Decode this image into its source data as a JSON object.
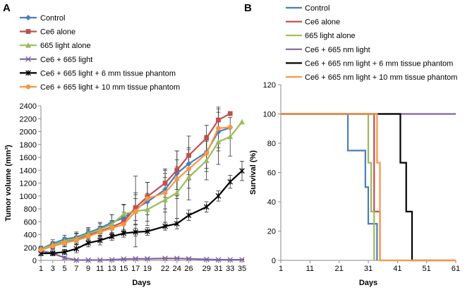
{
  "figure": {
    "panel_a_letter": "A",
    "panel_b_letter": "B"
  },
  "chart_data": [
    {
      "type": "line",
      "panel": "A",
      "xlabel": "Days",
      "ylabel": "Tumor volume (mm³)",
      "xlim": [
        1,
        35
      ],
      "ylim": [
        0,
        2400
      ],
      "xticks": [
        1,
        3,
        5,
        7,
        9,
        11,
        13,
        15,
        17,
        19,
        22,
        24,
        26,
        29,
        31,
        33,
        35
      ],
      "yticks": [
        0,
        200,
        400,
        600,
        800,
        1000,
        1200,
        1400,
        1600,
        1800,
        2000,
        2200,
        2400
      ],
      "legend_position": "top-left",
      "series": [
        {
          "name": "Control",
          "color": "#4a7ebb",
          "marker": "diamond",
          "x": [
            1,
            3,
            5,
            7,
            9,
            11,
            13,
            15,
            17,
            19,
            22,
            24,
            26,
            29,
            31,
            33
          ],
          "y": [
            180,
            260,
            330,
            360,
            430,
            500,
            590,
            660,
            800,
            910,
            1100,
            1350,
            1500,
            1680,
            2000,
            2060
          ],
          "err": [
            40,
            60,
            60,
            80,
            80,
            90,
            120,
            200,
            250,
            300,
            300,
            350,
            250,
            250,
            300,
            0
          ]
        },
        {
          "name": "Ce6 alone",
          "color": "#c0504d",
          "marker": "square",
          "x": [
            1,
            3,
            5,
            7,
            9,
            11,
            13,
            15,
            17,
            19,
            22,
            24,
            26,
            29,
            31,
            33
          ],
          "y": [
            160,
            230,
            280,
            330,
            390,
            450,
            520,
            600,
            820,
            990,
            1200,
            1400,
            1630,
            1900,
            2180,
            2280
          ],
          "err": [
            40,
            50,
            60,
            80,
            80,
            80,
            100,
            150,
            200,
            220,
            220,
            300,
            300,
            200,
            200,
            0
          ]
        },
        {
          "name": "665 light alone",
          "color": "#9bbb59",
          "marker": "triangle",
          "x": [
            1,
            3,
            5,
            7,
            9,
            11,
            13,
            15,
            17,
            19,
            22,
            24,
            26,
            29,
            31,
            33,
            35
          ],
          "y": [
            175,
            240,
            300,
            340,
            410,
            480,
            560,
            720,
            760,
            790,
            940,
            1050,
            1290,
            1550,
            1840,
            1920,
            2150
          ],
          "err": [
            40,
            50,
            60,
            80,
            80,
            90,
            150,
            150,
            550,
            250,
            350,
            400,
            350,
            300,
            350,
            300,
            0
          ]
        },
        {
          "name": "Ce6 + 665 light",
          "color": "#8064a2",
          "marker": "x",
          "x": [
            1,
            3,
            5,
            7,
            9,
            11,
            13,
            15,
            17,
            19,
            22,
            24,
            26,
            29,
            31,
            33,
            35
          ],
          "y": [
            150,
            110,
            40,
            5,
            5,
            5,
            10,
            20,
            25,
            25,
            30,
            30,
            25,
            15,
            10,
            10,
            10
          ],
          "err": [
            20,
            20,
            20,
            5,
            5,
            5,
            5,
            10,
            10,
            10,
            10,
            10,
            10,
            5,
            5,
            5,
            5
          ]
        },
        {
          "name": "Ce6 + 665 light + 6 mm tissue phantom",
          "color": "#000000",
          "marker": "star",
          "x": [
            1,
            3,
            5,
            7,
            9,
            11,
            13,
            15,
            17,
            19,
            22,
            24,
            26,
            29,
            31,
            33,
            35
          ],
          "y": [
            110,
            110,
            130,
            180,
            270,
            310,
            370,
            420,
            440,
            450,
            530,
            570,
            700,
            830,
            1000,
            1220,
            1390
          ],
          "err": [
            40,
            40,
            40,
            60,
            60,
            70,
            60,
            60,
            60,
            60,
            60,
            80,
            80,
            80,
            80,
            100,
            150
          ]
        },
        {
          "name": "Ce6 + 665 light + 10 mm tissue phantom",
          "color": "#f79646",
          "marker": "circle",
          "x": [
            1,
            3,
            5,
            7,
            9,
            11,
            13,
            15,
            17,
            19,
            22,
            24,
            26,
            29,
            31,
            33
          ],
          "y": [
            160,
            220,
            270,
            310,
            370,
            440,
            500,
            560,
            760,
            960,
            1050,
            1260,
            1420,
            1660,
            2050,
            2070
          ],
          "err": [
            40,
            50,
            60,
            70,
            80,
            90,
            100,
            120,
            200,
            250,
            300,
            300,
            300,
            280,
            300,
            0
          ]
        }
      ]
    },
    {
      "type": "line",
      "panel": "B",
      "step": true,
      "xlabel": "Days",
      "ylabel": "Survival (%)",
      "xlim": [
        1,
        61
      ],
      "ylim": [
        0,
        120
      ],
      "xticks": [
        1,
        11,
        21,
        31,
        41,
        51,
        61
      ],
      "yticks": [
        0,
        20,
        40,
        60,
        80,
        100,
        120
      ],
      "legend_position": "top",
      "series": [
        {
          "name": "Control",
          "color": "#4a7ebb",
          "x": [
            1,
            24,
            24,
            30,
            30,
            31,
            31,
            32,
            32,
            34,
            34
          ],
          "y": [
            100,
            100,
            75,
            75,
            50,
            50,
            25,
            25,
            25,
            25,
            0
          ]
        },
        {
          "name": "Ce6 alone",
          "color": "#c0504d",
          "x": [
            1,
            33,
            33,
            35,
            35
          ],
          "y": [
            100,
            100,
            33.3,
            33.3,
            0
          ]
        },
        {
          "name": "665 light alone",
          "color": "#9bbb59",
          "x": [
            1,
            31,
            31,
            32,
            32,
            33,
            33
          ],
          "y": [
            100,
            100,
            66.7,
            66.7,
            33.3,
            33.3,
            0
          ]
        },
        {
          "name": "Ce6 + 665 nm light",
          "color": "#8064a2",
          "x": [
            1,
            61
          ],
          "y": [
            100,
            100
          ]
        },
        {
          "name": "Ce6 + 665 nm light + 6 mm tissue phantom",
          "color": "#000000",
          "x": [
            1,
            40,
            40,
            42,
            42,
            44,
            44,
            46,
            46,
            61
          ],
          "y": [
            100,
            100,
            100,
            100,
            66.7,
            66.7,
            33.3,
            33.3,
            0,
            0
          ]
        },
        {
          "name": "Ce6 + 665 nm light + 10 mm tissue phantom",
          "color": "#f79646",
          "x": [
            1,
            34,
            34,
            35,
            35,
            61
          ],
          "y": [
            100,
            100,
            66.7,
            66.7,
            0,
            0
          ]
        }
      ]
    }
  ]
}
